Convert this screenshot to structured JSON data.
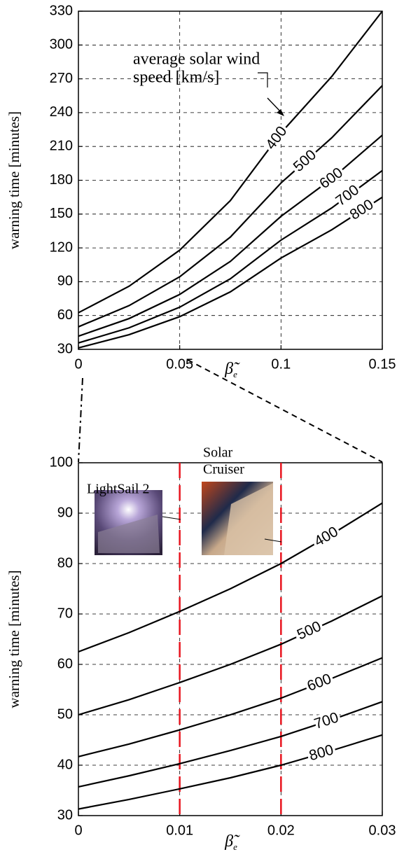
{
  "chart_data": [
    {
      "type": "line",
      "x": [
        0,
        0.025,
        0.05,
        0.075,
        0.1,
        0.125,
        0.15
      ],
      "series": [
        {
          "name": "400",
          "color": "#000000",
          "values": [
            62.5,
            86,
            118,
            162,
            222,
            272,
            330
          ]
        },
        {
          "name": "500",
          "color": "#000000",
          "values": [
            50,
            68.8,
            94.4,
            129.6,
            177.6,
            217.6,
            264
          ]
        },
        {
          "name": "600",
          "color": "#000000",
          "values": [
            41.7,
            57.3,
            78.7,
            108,
            148,
            181.3,
            220
          ]
        },
        {
          "name": "700",
          "color": "#000000",
          "values": [
            35.7,
            49.1,
            67.4,
            92.6,
            126.9,
            155.4,
            188.6
          ]
        },
        {
          "name": "800",
          "color": "#000000",
          "values": [
            31.3,
            43,
            59,
            81,
            111,
            136,
            165
          ]
        }
      ],
      "xlim": [
        0,
        0.15
      ],
      "ylim": [
        30,
        330
      ],
      "xticks": [
        0,
        0.05,
        0.1,
        0.15
      ],
      "yticks": [
        30,
        60,
        90,
        120,
        150,
        180,
        210,
        240,
        270,
        300,
        330
      ],
      "xlabel": {
        "symbol": "β̃",
        "subscript": "e"
      },
      "ylabel": "warning time [minutes]",
      "grid": true,
      "annotation": [
        "average solar wind",
        "speed [km/s]"
      ]
    },
    {
      "type": "line",
      "x": [
        0,
        0.005,
        0.01,
        0.015,
        0.02,
        0.025,
        0.03
      ],
      "series": [
        {
          "name": "400",
          "color": "#000000",
          "values": [
            62.5,
            66.3,
            70.5,
            75,
            80,
            85.8,
            92
          ]
        },
        {
          "name": "500",
          "color": "#000000",
          "values": [
            50,
            53,
            56.4,
            60,
            64,
            68.6,
            73.6
          ]
        },
        {
          "name": "600",
          "color": "#000000",
          "values": [
            41.7,
            44.2,
            47,
            50,
            53.3,
            57.2,
            61.3
          ]
        },
        {
          "name": "700",
          "color": "#000000",
          "values": [
            35.7,
            37.9,
            40.3,
            42.9,
            45.7,
            49,
            52.6
          ]
        },
        {
          "name": "800",
          "color": "#000000",
          "values": [
            31.3,
            33.2,
            35.3,
            37.5,
            40,
            42.9,
            46
          ]
        }
      ],
      "xlim": [
        0,
        0.03
      ],
      "ylim": [
        30,
        100
      ],
      "xticks": [
        0,
        0.01,
        0.02,
        0.03
      ],
      "yticks": [
        30,
        40,
        50,
        60,
        70,
        80,
        90,
        100
      ],
      "xlabel": {
        "symbol": "β̃",
        "subscript": "e"
      },
      "ylabel": "warning time [minutes]",
      "grid": true,
      "vlines": {
        "values": [
          0.01,
          0.02
        ],
        "color": "#e8141e"
      },
      "annotations": [
        [
          "LightSail 2"
        ],
        [
          "Solar",
          "Cruiser"
        ]
      ]
    }
  ]
}
